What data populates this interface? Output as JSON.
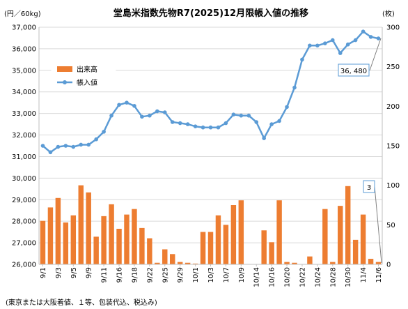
{
  "chart_data": {
    "type": "bar+line",
    "title": "堂島米指数先物R7(2025)12月限帳入値の推移",
    "y_left_label": "(円／60kg)",
    "y_right_label": "(枚)",
    "footnote": "(東京または大阪着値、１等、包装代込、税込み)",
    "y_left_ticks": [
      "37,000",
      "36,000",
      "35,000",
      "34,000",
      "33,000",
      "32,000",
      "31,000",
      "30,000",
      "29,000",
      "28,000",
      "27,000",
      "26,000"
    ],
    "y_right_ticks": [
      "300",
      "250",
      "200",
      "150",
      "100",
      "50",
      "0"
    ],
    "y_left_lim": [
      26000,
      37000
    ],
    "y_right_lim": [
      0,
      300
    ],
    "x_tick_labels": [
      "9/1",
      "9/3",
      "9/5",
      "9/9",
      "9/11",
      "9/16",
      "9/18",
      "9/22",
      "9/25",
      "9/29",
      "10/1",
      "10/3",
      "10/7",
      "10/9",
      "10/14",
      "10/16",
      "10/20",
      "10/22",
      "10/24",
      "10/28",
      "10/30",
      "11/4",
      "11/6"
    ],
    "x_tick_index": [
      0,
      2,
      4,
      6,
      8,
      10,
      12,
      14,
      16,
      18,
      20,
      22,
      24,
      26,
      28,
      30,
      32,
      34,
      36,
      38,
      40,
      42,
      44
    ],
    "series": [
      {
        "name": "出来高",
        "axis": "right",
        "color": "#ED7D31",
        "values": [
          55,
          72,
          84,
          53,
          62,
          100,
          91,
          35,
          61,
          76,
          45,
          63,
          70,
          46,
          33,
          2,
          19,
          13,
          3,
          2,
          1,
          41,
          41,
          62,
          50,
          75,
          81,
          0,
          0,
          43,
          28,
          81,
          3,
          2,
          0,
          10,
          0,
          70,
          3,
          74,
          99,
          31,
          63,
          7,
          3
        ]
      },
      {
        "name": "帳入値",
        "axis": "left",
        "color": "#5B9BD5",
        "values": [
          31500,
          31200,
          31450,
          31500,
          31450,
          31550,
          31550,
          31800,
          32150,
          32900,
          33400,
          33500,
          33350,
          32850,
          32900,
          33100,
          33050,
          32600,
          32550,
          32500,
          32400,
          32350,
          32350,
          32350,
          32550,
          32950,
          32900,
          32900,
          32600,
          31850,
          32500,
          32650,
          33300,
          34200,
          35500,
          36150,
          36150,
          36250,
          36400,
          35800,
          36200,
          36400,
          36800,
          36550,
          36480
        ]
      }
    ],
    "annotations": [
      {
        "text": "36, 480",
        "series": "帳入値"
      },
      {
        "text": "3",
        "series": "出来高"
      }
    ],
    "legend_position": "upper-left",
    "grid": "horizontal"
  }
}
